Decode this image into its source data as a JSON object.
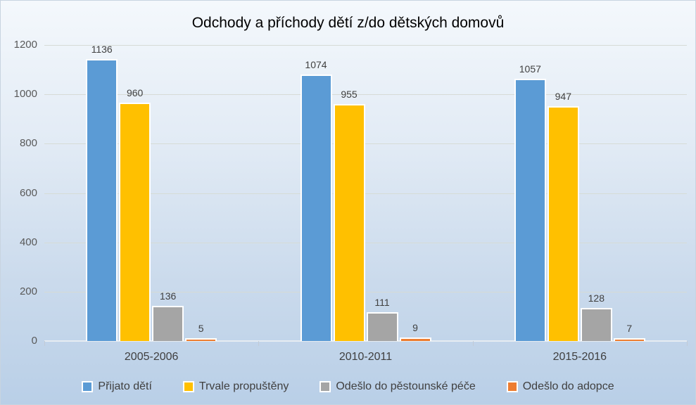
{
  "chart_data": {
    "type": "bar",
    "title": "Odchody a příchody dětí z/do dětských domovů",
    "categories": [
      "2005-2006",
      "2010-2011",
      "2015-2016"
    ],
    "series": [
      {
        "name": "Přijato dětí",
        "color": "#5B9BD5",
        "values": [
          1136,
          1074,
          1057
        ]
      },
      {
        "name": "Trvale propuštěny",
        "color": "#FFC000",
        "values": [
          960,
          955,
          947
        ]
      },
      {
        "name": "Odešlo do pěstounské péče",
        "color": "#A5A5A5",
        "values": [
          136,
          111,
          128
        ]
      },
      {
        "name": "Odešlo do adopce",
        "color": "#ED7D31",
        "values": [
          5,
          9,
          7
        ]
      }
    ],
    "yticks": [
      0,
      200,
      400,
      600,
      800,
      1000,
      1200
    ],
    "ylim": [
      0,
      1200
    ],
    "grid": true,
    "data_labels": true,
    "legend_position": "bottom",
    "styles": {
      "bar_border_color": "#FFFFFF",
      "gridline_color": "#D6DBD6",
      "axis_line_color": "#E7ECF2",
      "y_label_color": "#595959",
      "x_label_color": "#3F3F3F",
      "value_label_color": "#404040",
      "legend_text_color": "#404040",
      "background_top": "#F4F8FC",
      "background_bottom": "#B9CFE7"
    }
  }
}
